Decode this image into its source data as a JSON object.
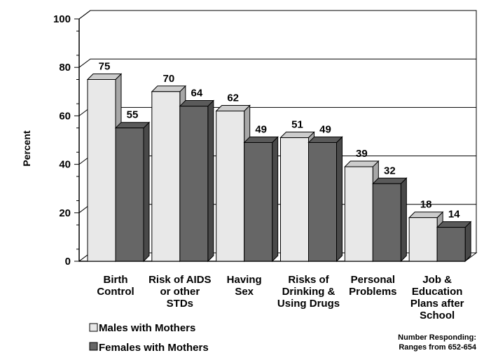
{
  "chart_data": {
    "type": "bar",
    "title": "",
    "ylabel": "Percent",
    "xlabel": "",
    "ylim": [
      0,
      100
    ],
    "yticks": [
      0,
      20,
      40,
      60,
      80,
      100
    ],
    "grid": true,
    "categories": [
      [
        "Birth",
        "Control"
      ],
      [
        "Risk of AIDS",
        "or other",
        "STDs"
      ],
      [
        "Having",
        "Sex"
      ],
      [
        "Risks of",
        "Drinking &",
        "Using Drugs"
      ],
      [
        "Personal",
        "Problems"
      ],
      [
        "Job &",
        "Education",
        "Plans after",
        "School"
      ]
    ],
    "series": [
      {
        "name": "Males with Mothers",
        "values": [
          75,
          70,
          62,
          51,
          39,
          18
        ],
        "color": "#e8e8e8"
      },
      {
        "name": "Females with Mothers",
        "values": [
          55,
          64,
          49,
          49,
          32,
          14
        ],
        "color": "#666666"
      }
    ],
    "legend_position": "bottom-left",
    "note": [
      "Number Responding:",
      "Ranges from 652-654"
    ]
  }
}
